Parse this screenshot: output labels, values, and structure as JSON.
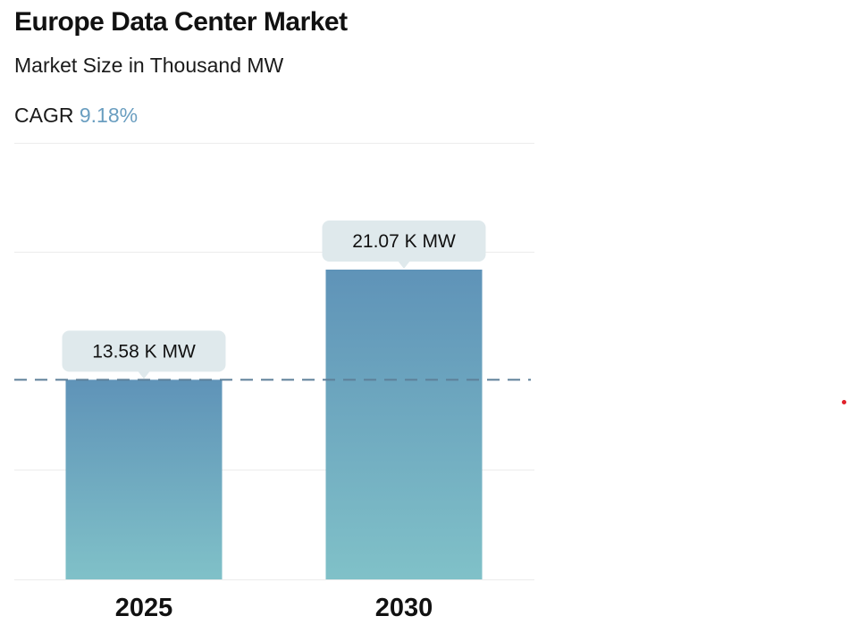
{
  "header": {
    "title": "Europe Data Center Market",
    "subtitle": "Market Size in Thousand MW",
    "cagr_label": "CAGR",
    "cagr_value": "9.18%"
  },
  "chart_data": {
    "type": "bar",
    "title": "Europe Data Center Market",
    "ylabel": "Market Size in Thousand MW",
    "xlabel": "",
    "categories": [
      "2025",
      "2030"
    ],
    "values": [
      13.58,
      21.07
    ],
    "data_labels": [
      "13.58 K MW",
      "21.07 K MW"
    ],
    "unit": "K MW",
    "ylim": [
      0,
      24.5
    ],
    "reference_line": 13.58,
    "grid": true
  },
  "colors": {
    "bar_top": "#5f93b8",
    "bar_bottom": "#80c1c8",
    "callout_bg": "#dfe9ec",
    "dash_line": "#5d7f99",
    "grid": "#ececec",
    "cagr_accent": "#6a9ec0"
  }
}
